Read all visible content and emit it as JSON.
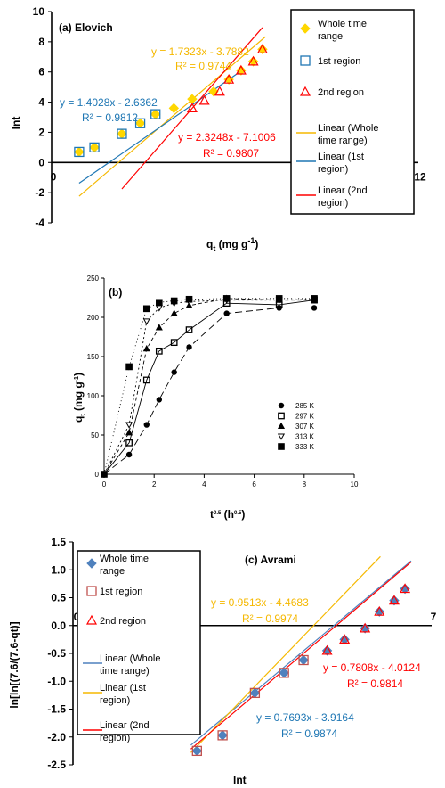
{
  "colors": {
    "whole": "#FFD700",
    "first_blue": "#1F77B4",
    "second_red": "#FF0000",
    "orange": "#F5B800",
    "avrami_whole": "#4F81BD",
    "avrami_first": "#C0504D",
    "black": "#000000"
  },
  "chart_data": [
    {
      "type": "scatter",
      "title": "(a) Elovich",
      "xlabel": "q",
      "xlabel_sub": "t",
      "xlabel_unit": " (mg g",
      "xlabel_exp": "-1",
      "xlabel_close": ")",
      "ylabel": "lnt",
      "xlim": [
        0,
        12
      ],
      "ylim": [
        -4,
        10
      ],
      "xticks": [
        0,
        12
      ],
      "yticks": [
        -4,
        -2,
        0,
        2,
        4,
        6,
        8,
        10
      ],
      "series": [
        {
          "name": "Whole time range",
          "marker": "diamond",
          "x": [
            0.9,
            1.4,
            2.3,
            2.9,
            3.4,
            4.0,
            4.6,
            5.3,
            5.8,
            6.2,
            6.6,
            6.9
          ],
          "y": [
            0.7,
            1.0,
            1.9,
            2.6,
            3.2,
            3.6,
            4.2,
            4.7,
            5.5,
            6.1,
            6.7,
            7.5
          ]
        },
        {
          "name": "1st region",
          "marker": "square",
          "x": [
            0.9,
            1.4,
            2.3,
            2.9,
            3.4
          ],
          "y": [
            0.7,
            1.0,
            1.9,
            2.6,
            3.2
          ]
        },
        {
          "name": "2nd region",
          "marker": "triangle",
          "x": [
            4.6,
            5.0,
            5.5,
            5.8,
            6.2,
            6.6,
            6.9
          ],
          "y": [
            3.6,
            4.1,
            4.7,
            5.5,
            6.1,
            6.7,
            7.5
          ]
        }
      ],
      "fits": [
        {
          "name": "Linear (Whole time range)",
          "slope": 1.7323,
          "intercept": -3.7882,
          "x_range": [
            0.9,
            7.0
          ]
        },
        {
          "name": "Linear (1st region)",
          "slope": 1.4028,
          "intercept": -2.6362,
          "x_range": [
            0.9,
            6.3
          ]
        },
        {
          "name": "Linear (2nd region)",
          "slope": 2.3248,
          "intercept": -7.1006,
          "x_range": [
            2.3,
            6.9
          ]
        }
      ],
      "annotations": [
        {
          "text": "y = 1.7323x - 3.7882",
          "r2": "R² = 0.9744"
        },
        {
          "text": "y = 1.4028x - 2.6362",
          "r2": "R² = 0.9812"
        },
        {
          "text": "y = 2.3248x - 7.1006",
          "r2": "R² = 0.9807"
        }
      ],
      "legend_labels": [
        [
          "Whole time",
          "range"
        ],
        [
          "1st region"
        ],
        [
          "2nd region"
        ],
        [
          "Linear (Whole",
          "time range)"
        ],
        [
          "Linear (1st",
          "region)"
        ],
        [
          "Linear (2nd",
          "region)"
        ]
      ]
    },
    {
      "type": "line",
      "title": "(b)",
      "xlabel": "t",
      "xlabel_exp": "0.5",
      "xlabel_unit": " (h",
      "xlabel_unit_exp": "0.5",
      "xlabel_close": ")",
      "ylabel": "q",
      "ylabel_sub": "t",
      "ylabel_unit": " (mg g",
      "ylabel_exp": "-1",
      "ylabel_close": ")",
      "xlim": [
        0,
        10
      ],
      "ylim": [
        0,
        250
      ],
      "xticks": [
        0,
        2,
        4,
        6,
        8,
        10
      ],
      "yticks": [
        0,
        50,
        100,
        150,
        200,
        250
      ],
      "series": [
        {
          "name": "285 K",
          "marker": "circle",
          "dash": "8,4",
          "x": [
            0,
            1.0,
            1.7,
            2.2,
            2.8,
            3.4,
            4.9,
            7.0,
            8.4
          ],
          "y": [
            0,
            25,
            63,
            95,
            130,
            162,
            205,
            212,
            212
          ]
        },
        {
          "name": "297 K",
          "marker": "square-open",
          "dash": "",
          "x": [
            0,
            1.0,
            1.7,
            2.2,
            2.8,
            3.4,
            4.9,
            7.0,
            8.4
          ],
          "y": [
            0,
            40,
            120,
            157,
            168,
            184,
            218,
            216,
            222
          ]
        },
        {
          "name": "307 K",
          "marker": "triangle",
          "dash": "4,3",
          "x": [
            0,
            1.0,
            1.7,
            2.2,
            2.8,
            3.4,
            4.9,
            7.0,
            8.4
          ],
          "y": [
            0,
            53,
            160,
            187,
            205,
            215,
            224,
            222,
            222
          ]
        },
        {
          "name": "313 K",
          "marker": "triangle-down-open",
          "dash": "2,3",
          "x": [
            0,
            1.0,
            1.7,
            2.2,
            2.8,
            3.4,
            4.9,
            7.0,
            8.4
          ],
          "y": [
            0,
            63,
            195,
            212,
            218,
            220,
            222,
            222,
            223
          ]
        },
        {
          "name": "333 K",
          "marker": "square",
          "dash": "1,3",
          "x": [
            0,
            1.0,
            1.7,
            2.2,
            2.8,
            3.4,
            4.9,
            7.0,
            8.4
          ],
          "y": [
            0,
            137,
            211,
            219,
            221,
            223,
            224,
            224,
            224
          ]
        }
      ]
    },
    {
      "type": "scatter",
      "title": "(c) Avrami",
      "xlabel": "lnt",
      "ylabel": "ln[ln[(7.6/(7.6-qt)]",
      "xlim": [
        0,
        7
      ],
      "ylim": [
        -2.5,
        1.5
      ],
      "xticks": [
        0,
        7
      ],
      "yticks": [
        -2.5,
        -2.0,
        -1.5,
        -1.0,
        -0.5,
        0.0,
        0.5,
        1.0,
        1.5
      ],
      "series": [
        {
          "name": "Whole time range",
          "marker": "diamond",
          "x": [
            2.42,
            2.92,
            3.55,
            4.12,
            4.5,
            4.96,
            5.3,
            5.7,
            5.98,
            6.27,
            6.48
          ],
          "y": [
            -2.25,
            -1.97,
            -1.21,
            -0.85,
            -0.62,
            -0.45,
            -0.25,
            -0.05,
            0.25,
            0.45,
            0.66
          ]
        },
        {
          "name": "1st region",
          "marker": "square-open",
          "x": [
            2.42,
            2.92,
            3.55,
            4.12,
            4.5
          ],
          "y": [
            -2.25,
            -1.97,
            -1.21,
            -0.85,
            -0.62
          ]
        },
        {
          "name": "2nd region",
          "marker": "triangle-open",
          "x": [
            4.96,
            5.3,
            5.7,
            5.98,
            6.27,
            6.48
          ],
          "y": [
            -0.45,
            -0.25,
            -0.05,
            0.25,
            0.45,
            0.66
          ]
        }
      ],
      "fits": [
        {
          "name": "Linear (Whole time range)",
          "slope": 0.7693,
          "intercept": -3.9164,
          "x_range": [
            2.3,
            6.6
          ]
        },
        {
          "name": "Linear (1st region)",
          "slope": 0.9513,
          "intercept": -4.4683,
          "x_range": [
            2.3,
            6.0
          ]
        },
        {
          "name": "Linear (2nd region)",
          "slope": 0.7808,
          "intercept": -4.0124,
          "x_range": [
            2.3,
            6.6
          ]
        }
      ],
      "annotations": [
        {
          "text": "y = 0.9513x - 4.4683",
          "r2": "R² = 0.9974"
        },
        {
          "text": "y = 0.7808x - 4.0124",
          "r2": "R² = 0.9814"
        },
        {
          "text": "y = 0.7693x - 3.9164",
          "r2": "R² = 0.9874"
        }
      ],
      "legend_labels": [
        [
          "Whole time",
          "range"
        ],
        [
          "1st region"
        ],
        [
          "2nd region"
        ],
        [
          "Linear (Whole",
          "time range)"
        ],
        [
          "Linear (1st",
          "region)"
        ],
        [
          "Linear (2nd",
          "region)"
        ]
      ]
    }
  ]
}
